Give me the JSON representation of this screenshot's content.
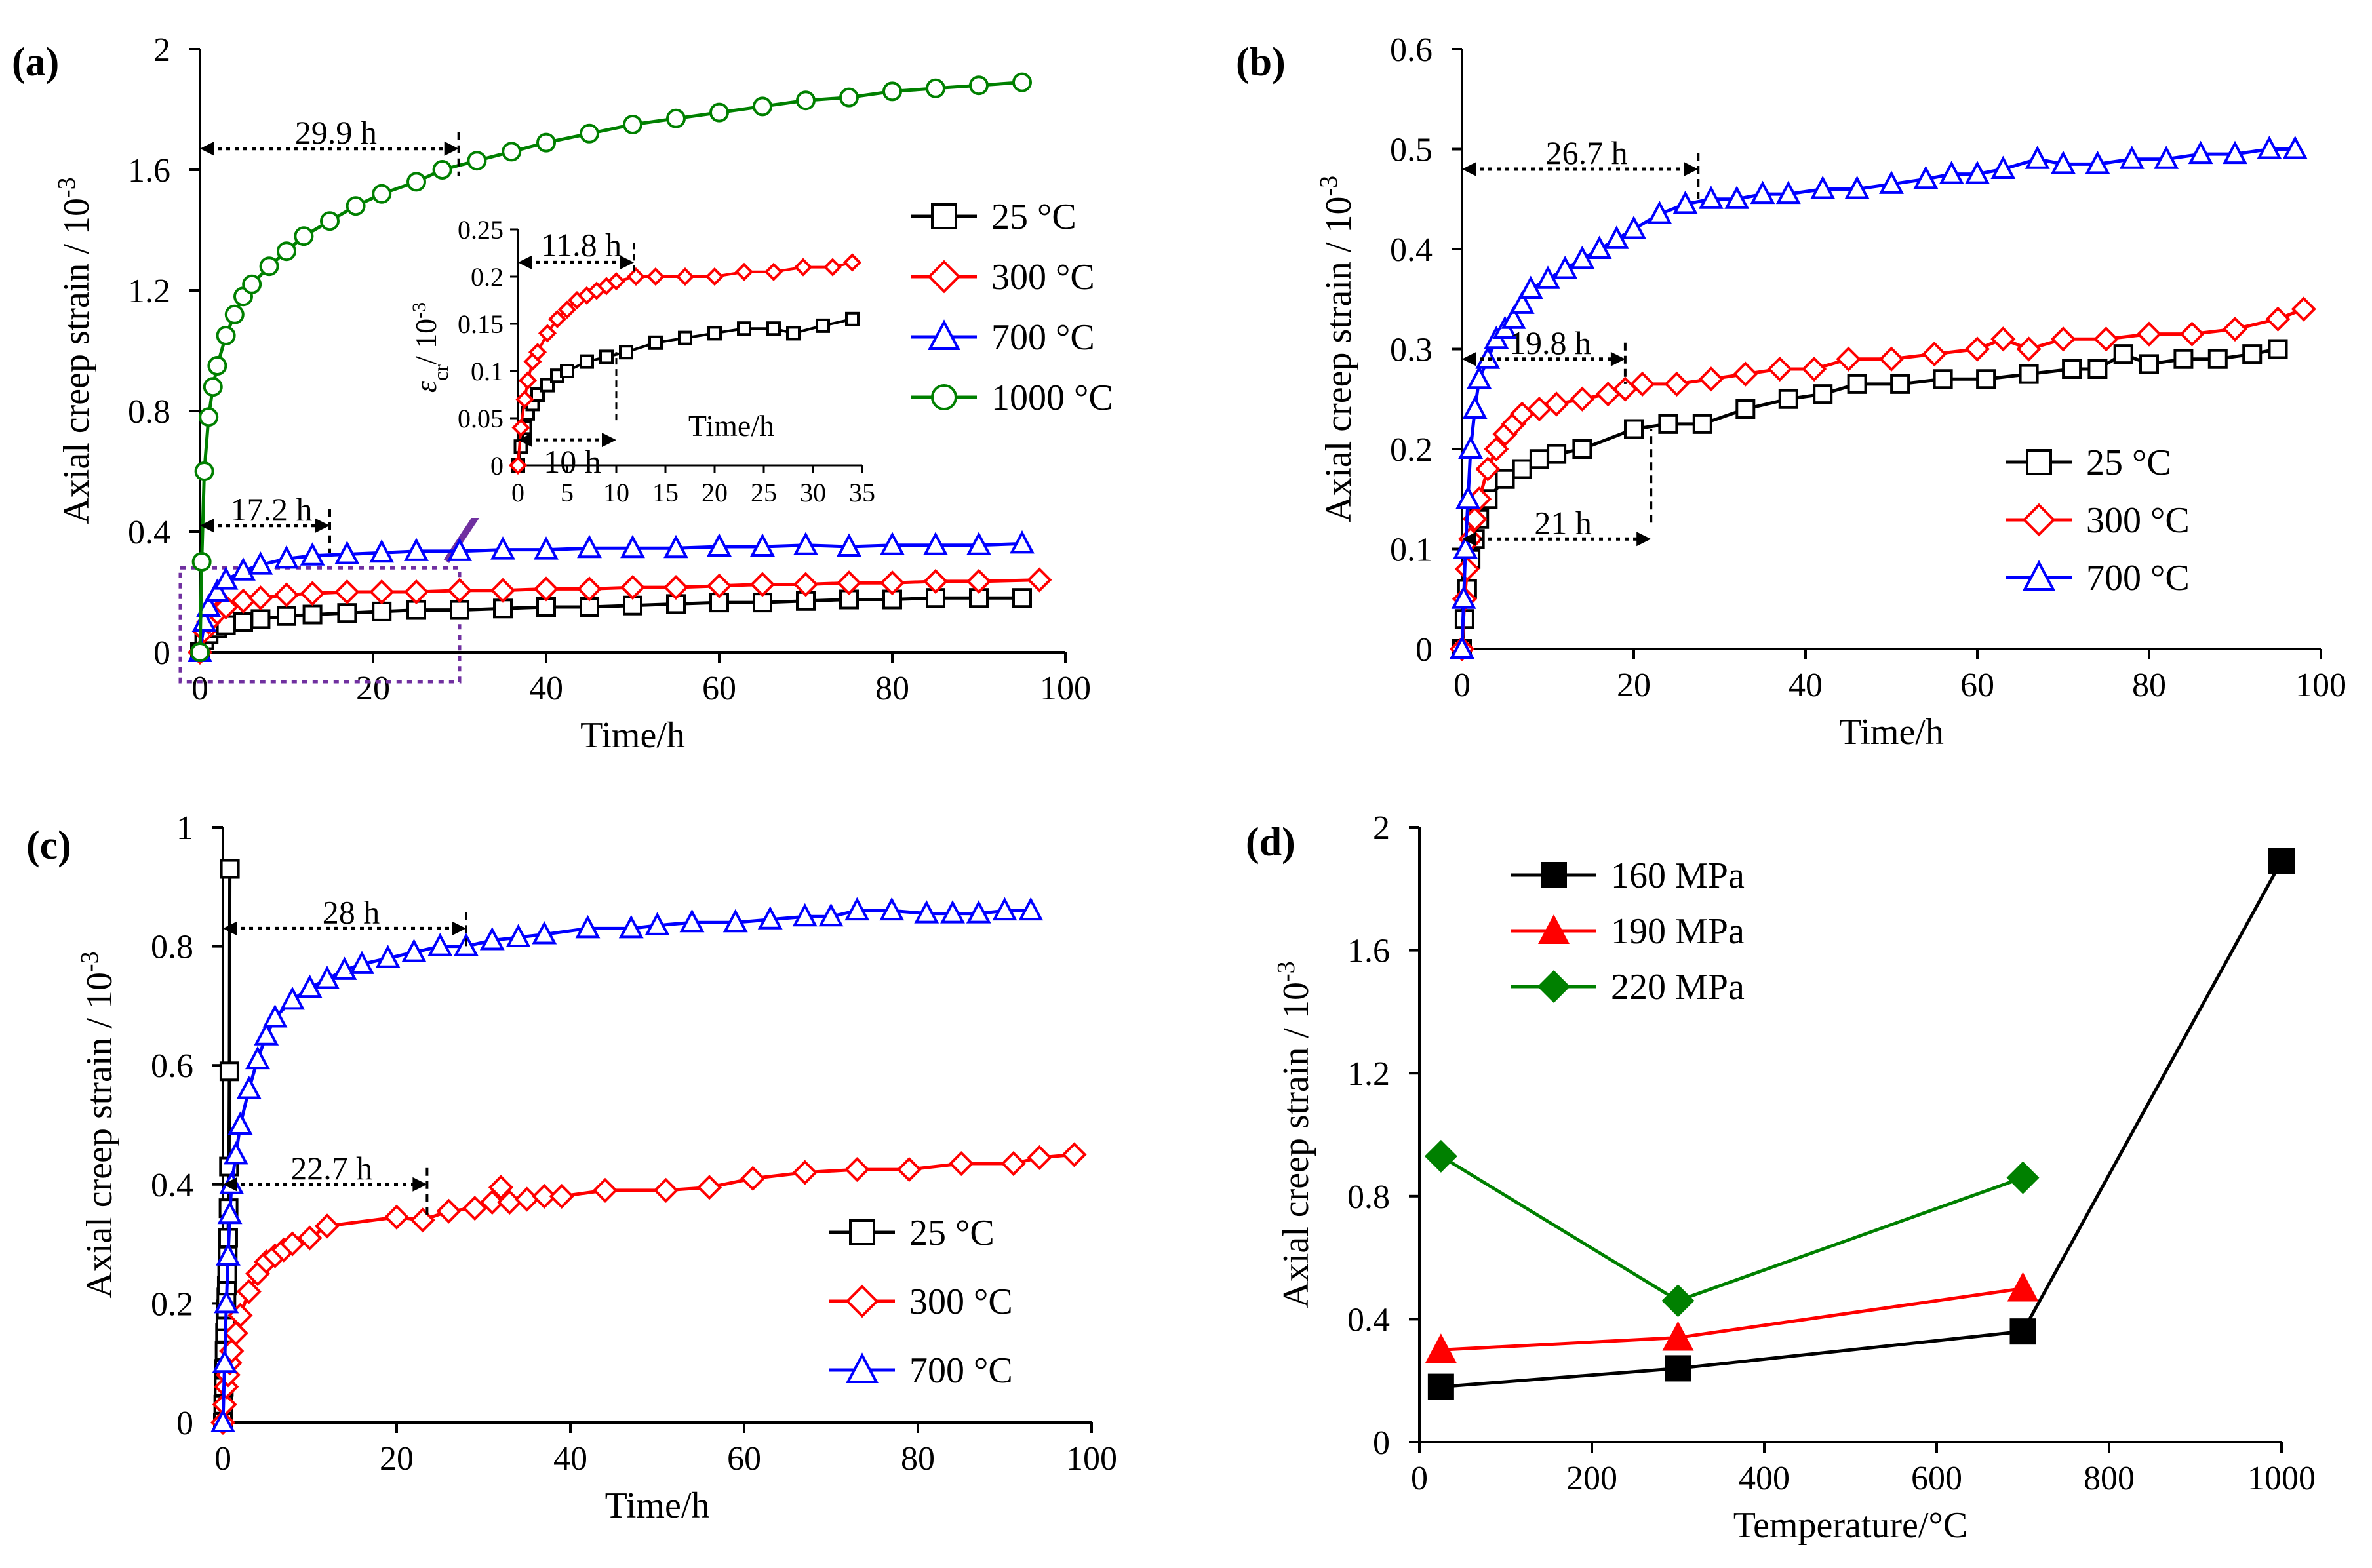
{
  "colors": {
    "black": "#000000",
    "red": "#ff0000",
    "blue": "#0000ff",
    "green": "#008000",
    "purple": "#7030a0"
  },
  "chart_data": [
    {
      "id": "a",
      "panel_label": "(a)",
      "type": "line",
      "xlabel": "Time/h",
      "ylabel": "Axial creep strain / 10",
      "ylabel_sup": "-3",
      "xlim": [
        0,
        100
      ],
      "ylim": [
        0,
        2
      ],
      "xticks": [
        "0",
        "20",
        "40",
        "60",
        "80",
        "100"
      ],
      "yticks": [
        "0",
        "0.4",
        "0.8",
        "1.2",
        "1.6",
        "2"
      ],
      "legend_position": "right",
      "series": [
        {
          "name": "25 °C",
          "marker": "square",
          "color": "#000000",
          "x": [
            0,
            0.5,
            1,
            2,
            3,
            5,
            7,
            10,
            13,
            17,
            21,
            25,
            30,
            35,
            40,
            45,
            50,
            55,
            60,
            65,
            70,
            75,
            80,
            85,
            90,
            95
          ],
          "y": [
            0,
            0.04,
            0.06,
            0.08,
            0.09,
            0.1,
            0.11,
            0.12,
            0.125,
            0.13,
            0.135,
            0.14,
            0.14,
            0.145,
            0.15,
            0.15,
            0.155,
            0.16,
            0.165,
            0.165,
            0.17,
            0.175,
            0.175,
            0.18,
            0.18,
            0.18
          ]
        },
        {
          "name": "300 °C",
          "marker": "diamond",
          "color": "#ff0000",
          "x": [
            0,
            0.5,
            1,
            2,
            3,
            5,
            7,
            10,
            13,
            17,
            21,
            25,
            30,
            35,
            40,
            45,
            50,
            55,
            60,
            65,
            70,
            75,
            80,
            85,
            90,
            97
          ],
          "y": [
            0,
            0.07,
            0.1,
            0.13,
            0.15,
            0.17,
            0.18,
            0.19,
            0.195,
            0.2,
            0.2,
            0.2,
            0.205,
            0.205,
            0.21,
            0.21,
            0.215,
            0.215,
            0.22,
            0.225,
            0.225,
            0.23,
            0.23,
            0.235,
            0.235,
            0.24
          ]
        },
        {
          "name": "700 °C",
          "marker": "triangle",
          "color": "#0000ff",
          "x": [
            0,
            0.5,
            1,
            2,
            3,
            5,
            7,
            10,
            13,
            17,
            21,
            25,
            30,
            35,
            40,
            45,
            50,
            55,
            60,
            65,
            70,
            75,
            80,
            85,
            90,
            95
          ],
          "y": [
            0,
            0.1,
            0.15,
            0.2,
            0.24,
            0.27,
            0.29,
            0.31,
            0.32,
            0.325,
            0.33,
            0.335,
            0.335,
            0.34,
            0.34,
            0.345,
            0.345,
            0.345,
            0.35,
            0.35,
            0.355,
            0.35,
            0.355,
            0.355,
            0.355,
            0.36
          ]
        },
        {
          "name": "1000 °C",
          "marker": "circle",
          "color": "#008000",
          "x": [
            0,
            0.2,
            0.5,
            1,
            1.5,
            2,
            3,
            4,
            5,
            6,
            8,
            10,
            12,
            15,
            18,
            21,
            25,
            28,
            32,
            36,
            40,
            45,
            50,
            55,
            60,
            65,
            70,
            75,
            80,
            85,
            90,
            95
          ],
          "y": [
            0,
            0.3,
            0.6,
            0.78,
            0.88,
            0.95,
            1.05,
            1.12,
            1.18,
            1.22,
            1.28,
            1.33,
            1.38,
            1.43,
            1.48,
            1.52,
            1.56,
            1.6,
            1.63,
            1.66,
            1.69,
            1.72,
            1.75,
            1.77,
            1.79,
            1.81,
            1.83,
            1.84,
            1.86,
            1.87,
            1.88,
            1.89
          ]
        }
      ],
      "annotations": [
        {
          "text": "29.9 h",
          "x_start": 0,
          "x_end": 29.9,
          "y": 1.67,
          "drop_to": 1.58
        },
        {
          "text": "17.2 h",
          "x_start": 0,
          "x_end": 15,
          "y": 0.42,
          "drop_to": 0.33
        }
      ],
      "inset": {
        "xlabel": "Time/h",
        "ylabel": "ε",
        "ylabel_sub": "cr",
        "ylabel_tail": "/ 10",
        "ylabel_sup": "-3",
        "xlim": [
          0,
          35
        ],
        "ylim": [
          0,
          0.25
        ],
        "xticks": [
          "0",
          "5",
          "10",
          "15",
          "20",
          "25",
          "30",
          "35"
        ],
        "yticks": [
          "0",
          "0.05",
          "0.1",
          "0.15",
          "0.2",
          "0.25"
        ],
        "series": [
          {
            "name": "25 °C",
            "marker": "square",
            "color": "#000000",
            "x": [
              0,
              0.3,
              0.7,
              1,
              1.5,
              2,
              3,
              4,
              5,
              7,
              9,
              11,
              14,
              17,
              20,
              23,
              26,
              28,
              31,
              34
            ],
            "y": [
              0,
              0.02,
              0.04,
              0.055,
              0.065,
              0.075,
              0.085,
              0.095,
              0.1,
              0.11,
              0.115,
              0.12,
              0.13,
              0.135,
              0.14,
              0.145,
              0.145,
              0.14,
              0.148,
              0.155
            ]
          },
          {
            "name": "300 °C",
            "marker": "diamond",
            "color": "#ff0000",
            "x": [
              0,
              0.3,
              0.7,
              1,
              1.5,
              2,
              3,
              4,
              5,
              6,
              7,
              8,
              9,
              10,
              12,
              14,
              17,
              20,
              23,
              26,
              29,
              32,
              34
            ],
            "y": [
              0,
              0.04,
              0.07,
              0.09,
              0.11,
              0.12,
              0.14,
              0.155,
              0.165,
              0.175,
              0.18,
              0.185,
              0.19,
              0.195,
              0.2,
              0.2,
              0.2,
              0.2,
              0.205,
              0.205,
              0.21,
              0.21,
              0.215
            ]
          }
        ],
        "annotations": [
          {
            "text": "11.8 h",
            "x_start": 0,
            "x_end": 11.8,
            "y": 0.215
          },
          {
            "text": "10 h",
            "x_start": 0,
            "x_end": 10,
            "y": 0.027
          }
        ]
      },
      "zoom_box": {
        "x_range": [
          0,
          30
        ],
        "y_range": [
          0,
          0.28
        ]
      }
    },
    {
      "id": "b",
      "panel_label": "(b)",
      "type": "line",
      "xlabel": "Time/h",
      "ylabel": "Axial creep strain / 10",
      "ylabel_sup": "-3",
      "xlim": [
        0,
        100
      ],
      "ylim": [
        0,
        0.6
      ],
      "xticks": [
        "0",
        "20",
        "40",
        "60",
        "80",
        "100"
      ],
      "yticks": [
        "0",
        "0.1",
        "0.2",
        "0.3",
        "0.4",
        "0.5",
        "0.6"
      ],
      "legend_position": "bottom-right",
      "series": [
        {
          "name": "25 °C",
          "marker": "square",
          "color": "#000000",
          "x": [
            0,
            0.3,
            0.6,
            1,
            1.5,
            2,
            3,
            5,
            7,
            9,
            11,
            14,
            20,
            24,
            28,
            33,
            38,
            42,
            46,
            51,
            56,
            61,
            66,
            71,
            74,
            77,
            80,
            84,
            88,
            92,
            95
          ],
          "y": [
            0,
            0.03,
            0.06,
            0.09,
            0.11,
            0.13,
            0.15,
            0.17,
            0.18,
            0.19,
            0.195,
            0.2,
            0.22,
            0.225,
            0.225,
            0.24,
            0.25,
            0.255,
            0.265,
            0.265,
            0.27,
            0.27,
            0.275,
            0.28,
            0.28,
            0.295,
            0.285,
            0.29,
            0.29,
            0.295,
            0.3
          ]
        },
        {
          "name": "300 °C",
          "marker": "diamond",
          "color": "#ff0000",
          "x": [
            0,
            0.3,
            0.6,
            1,
            1.5,
            2,
            3,
            4,
            5,
            6,
            7,
            9,
            11,
            14,
            17,
            19,
            21,
            25,
            29,
            33,
            37,
            41,
            45,
            50,
            55,
            60,
            63,
            66,
            70,
            75,
            80,
            85,
            90,
            95,
            98
          ],
          "y": [
            0,
            0.05,
            0.08,
            0.11,
            0.13,
            0.15,
            0.18,
            0.2,
            0.215,
            0.225,
            0.235,
            0.24,
            0.245,
            0.25,
            0.255,
            0.26,
            0.265,
            0.265,
            0.27,
            0.275,
            0.28,
            0.28,
            0.29,
            0.29,
            0.295,
            0.3,
            0.31,
            0.3,
            0.31,
            0.31,
            0.315,
            0.315,
            0.32,
            0.33,
            0.34
          ]
        },
        {
          "name": "700 °C",
          "marker": "triangle",
          "color": "#0000ff",
          "x": [
            0,
            0.2,
            0.4,
            0.7,
            1,
            1.5,
            2,
            3,
            4,
            5,
            6,
            7,
            8,
            10,
            12,
            14,
            16,
            18,
            20,
            23,
            26,
            29,
            32,
            35,
            38,
            42,
            46,
            50,
            54,
            57,
            60,
            63,
            67,
            70,
            74,
            78,
            82,
            86,
            90,
            94,
            97
          ],
          "y": [
            0,
            0.05,
            0.1,
            0.15,
            0.2,
            0.24,
            0.27,
            0.29,
            0.31,
            0.32,
            0.33,
            0.345,
            0.36,
            0.37,
            0.38,
            0.39,
            0.4,
            0.41,
            0.42,
            0.435,
            0.445,
            0.45,
            0.45,
            0.455,
            0.455,
            0.46,
            0.46,
            0.465,
            0.47,
            0.475,
            0.475,
            0.48,
            0.49,
            0.485,
            0.485,
            0.49,
            0.49,
            0.495,
            0.495,
            0.5,
            0.5
          ]
        }
      ],
      "annotations": [
        {
          "text": "26.7 h",
          "x_start": 0,
          "x_end": 27.5,
          "y": 0.48,
          "drop_to": 0.45
        },
        {
          "text": "19.8 h",
          "x_start": 0,
          "x_end": 19,
          "y": 0.29,
          "drop_to": 0.265
        },
        {
          "text": "21 h",
          "x_start": 0,
          "x_end": 22,
          "y": 0.11,
          "drop_to": 0.22
        }
      ]
    },
    {
      "id": "c",
      "panel_label": "(c)",
      "type": "line",
      "xlabel": "Time/h",
      "ylabel": "Axial creep strain / 10",
      "ylabel_sup": "-3",
      "xlim": [
        0,
        100
      ],
      "ylim": [
        0,
        1
      ],
      "xticks": [
        "0",
        "20",
        "40",
        "60",
        "80",
        "100"
      ],
      "yticks": [
        "0",
        "0.2",
        "0.4",
        "0.6",
        "0.8",
        "1"
      ],
      "legend_position": "bottom-right",
      "series": [
        {
          "name": "25 °C",
          "marker": "square",
          "color": "#000000",
          "x": [
            0,
            0.05,
            0.1,
            0.15,
            0.2,
            0.25,
            0.3,
            0.35,
            0.4,
            0.45,
            0.5,
            0.55,
            0.6,
            0.65,
            0.7,
            0.75,
            0.8
          ],
          "y": [
            0,
            0.03,
            0.06,
            0.09,
            0.12,
            0.15,
            0.17,
            0.19,
            0.21,
            0.23,
            0.25,
            0.28,
            0.31,
            0.36,
            0.43,
            0.59,
            0.93
          ]
        },
        {
          "name": "300 °C",
          "marker": "diamond",
          "color": "#ff0000",
          "x": [
            0,
            0.2,
            0.4,
            0.6,
            0.8,
            1,
            1.5,
            2,
            3,
            4,
            5,
            6,
            7,
            8,
            10,
            12,
            20,
            23,
            26,
            29,
            31,
            32,
            33,
            35,
            37,
            39,
            44,
            51,
            56,
            61,
            67,
            73,
            79,
            85,
            91,
            94,
            98
          ],
          "y": [
            0,
            0.03,
            0.06,
            0.08,
            0.1,
            0.12,
            0.15,
            0.18,
            0.22,
            0.25,
            0.27,
            0.28,
            0.29,
            0.3,
            0.31,
            0.33,
            0.345,
            0.34,
            0.355,
            0.36,
            0.37,
            0.395,
            0.37,
            0.375,
            0.38,
            0.38,
            0.39,
            0.39,
            0.395,
            0.41,
            0.42,
            0.425,
            0.425,
            0.435,
            0.435,
            0.445,
            0.45
          ]
        },
        {
          "name": "700 °C",
          "marker": "triangle",
          "color": "#0000ff",
          "x": [
            0,
            0.2,
            0.4,
            0.6,
            0.8,
            1,
            1.5,
            2,
            3,
            4,
            5,
            6,
            8,
            10,
            12,
            14,
            16,
            19,
            22,
            25,
            28,
            31,
            34,
            37,
            42,
            47,
            50,
            54,
            59,
            63,
            67,
            70,
            73,
            77,
            81,
            84,
            87,
            90,
            93
          ],
          "y": [
            0,
            0.1,
            0.2,
            0.28,
            0.35,
            0.4,
            0.45,
            0.5,
            0.56,
            0.61,
            0.65,
            0.68,
            0.71,
            0.73,
            0.745,
            0.76,
            0.77,
            0.78,
            0.79,
            0.8,
            0.8,
            0.81,
            0.815,
            0.82,
            0.83,
            0.83,
            0.835,
            0.84,
            0.84,
            0.845,
            0.85,
            0.85,
            0.86,
            0.86,
            0.855,
            0.855,
            0.855,
            0.86,
            0.86
          ]
        }
      ],
      "annotations": [
        {
          "text": "28 h",
          "x_start": 0,
          "x_end": 28,
          "y": 0.83,
          "drop_to": 0.8
        },
        {
          "text": "22.7 h",
          "x_start": 0,
          "x_end": 23.5,
          "y": 0.4,
          "drop_to": 0.345
        }
      ]
    },
    {
      "id": "d",
      "panel_label": "(d)",
      "type": "line",
      "xlabel": "Temperature/°C",
      "ylabel": "Axial creep strain / 10",
      "ylabel_sup": "-3",
      "xlim": [
        0,
        1000
      ],
      "ylim": [
        0,
        2
      ],
      "xticks": [
        "0",
        "200",
        "400",
        "600",
        "800",
        "1000"
      ],
      "yticks": [
        "0",
        "0.4",
        "0.8",
        "1.2",
        "1.6",
        "2"
      ],
      "legend_position": "top-left",
      "series": [
        {
          "name": "160 MPa",
          "marker": "filled-square",
          "color": "#000000",
          "x": [
            25,
            300,
            700,
            1000
          ],
          "y": [
            0.18,
            0.24,
            0.36,
            1.89
          ]
        },
        {
          "name": "190 MPa",
          "marker": "filled-triangle",
          "color": "#ff0000",
          "x": [
            25,
            300,
            700
          ],
          "y": [
            0.3,
            0.34,
            0.5
          ]
        },
        {
          "name": "220 MPa",
          "marker": "filled-diamond",
          "color": "#008000",
          "x": [
            25,
            300,
            700
          ],
          "y": [
            0.93,
            0.46,
            0.86
          ]
        }
      ]
    }
  ]
}
